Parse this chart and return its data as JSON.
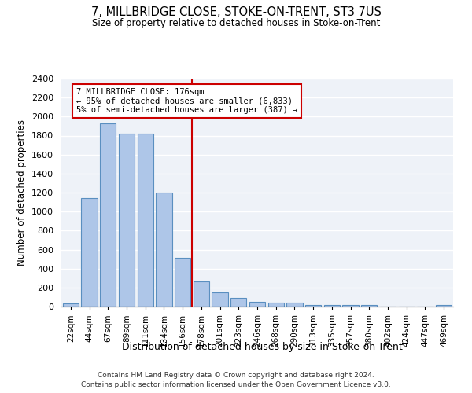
{
  "title": "7, MILLBRIDGE CLOSE, STOKE-ON-TRENT, ST3 7US",
  "subtitle": "Size of property relative to detached houses in Stoke-on-Trent",
  "xlabel": "Distribution of detached houses by size in Stoke-on-Trent",
  "ylabel": "Number of detached properties",
  "footer1": "Contains HM Land Registry data © Crown copyright and database right 2024.",
  "footer2": "Contains public sector information licensed under the Open Government Licence v3.0.",
  "categories": [
    "22sqm",
    "44sqm",
    "67sqm",
    "89sqm",
    "111sqm",
    "134sqm",
    "156sqm",
    "178sqm",
    "201sqm",
    "223sqm",
    "246sqm",
    "268sqm",
    "290sqm",
    "313sqm",
    "335sqm",
    "357sqm",
    "380sqm",
    "402sqm",
    "424sqm",
    "447sqm",
    "469sqm"
  ],
  "values": [
    30,
    1140,
    1930,
    1820,
    1820,
    1200,
    510,
    265,
    150,
    93,
    52,
    43,
    43,
    20,
    20,
    15,
    15,
    0,
    0,
    0,
    20
  ],
  "bar_color": "#aec6e8",
  "bar_edge_color": "#5a8fc0",
  "background_color": "#eef2f8",
  "grid_color": "#ffffff",
  "vline_x_index": 7,
  "vline_color": "#cc0000",
  "annotation_title": "7 MILLBRIDGE CLOSE: 176sqm",
  "annotation_line1": "← 95% of detached houses are smaller (6,833)",
  "annotation_line2": "5% of semi-detached houses are larger (387) →",
  "annotation_box_color": "#cc0000",
  "ylim": [
    0,
    2400
  ],
  "yticks": [
    0,
    200,
    400,
    600,
    800,
    1000,
    1200,
    1400,
    1600,
    1800,
    2000,
    2200,
    2400
  ]
}
